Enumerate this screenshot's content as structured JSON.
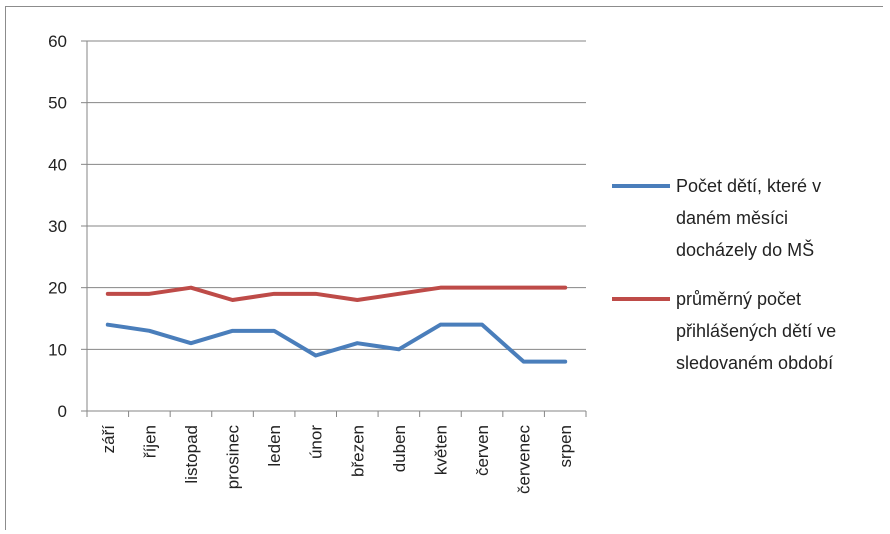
{
  "chart_data": {
    "type": "line",
    "categories": [
      "září",
      "říjen",
      "listopad",
      "prosinec",
      "leden",
      "únor",
      "březen",
      "duben",
      "květen",
      "červen",
      "červenec",
      "srpen"
    ],
    "series": [
      {
        "name_lines": [
          "Počet dětí, které v",
          "daném měsíci",
          "docházely do MŠ"
        ],
        "color": "#4a7ebb",
        "values": [
          14,
          13,
          11,
          13,
          13,
          9,
          11,
          10,
          14,
          14,
          8,
          8
        ]
      },
      {
        "name_lines": [
          "průměrný počet",
          "přihlášených dětí ve",
          "sledovaném období"
        ],
        "color": "#be4b48",
        "values": [
          19,
          19,
          20,
          18,
          19,
          19,
          18,
          19,
          20,
          20,
          20,
          20
        ]
      }
    ],
    "ylim": [
      0,
      60
    ],
    "yticks": [
      0,
      10,
      20,
      30,
      40,
      50,
      60
    ],
    "grid": true,
    "legend_position": "right"
  }
}
